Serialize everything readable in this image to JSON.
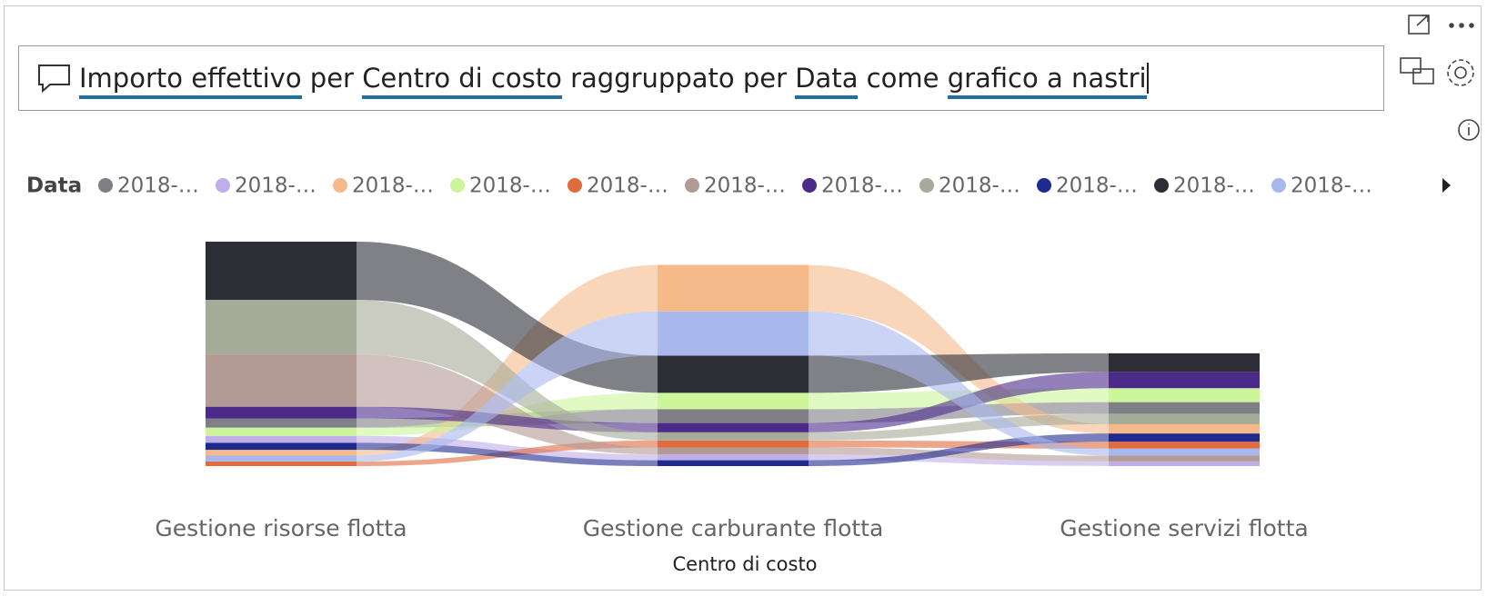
{
  "query_parts": [
    {
      "text": "Importo effettivo",
      "term": true
    },
    {
      "text": " per ",
      "term": false
    },
    {
      "text": "Centro di costo",
      "term": true
    },
    {
      "text": " raggruppato per ",
      "term": false
    },
    {
      "text": "Data",
      "term": true
    },
    {
      "text": " come ",
      "term": false
    },
    {
      "text": "grafico a nastri",
      "term": true
    }
  ],
  "chart_data": {
    "type": "ribbon",
    "legend_title": "Data",
    "x_label": "Centro di costo",
    "categories": [
      "Gestione risorse flotta",
      "Gestione carburante flotta",
      "Gestione servizi flotta"
    ],
    "series": [
      {
        "name": "2018-…",
        "color": "#7f7f86",
        "values": [
          8,
          12,
          10
        ]
      },
      {
        "name": "2018-…",
        "color": "#c0aee8",
        "values": [
          6,
          5,
          4
        ]
      },
      {
        "name": "2018-…",
        "color": "#f5b98a",
        "values": [
          5,
          40,
          8
        ]
      },
      {
        "name": "2018-…",
        "color": "#cdf59a",
        "values": [
          7,
          14,
          12
        ]
      },
      {
        "name": "2018-…",
        "color": "#e06b3e",
        "values": [
          4,
          6,
          6
        ]
      },
      {
        "name": "2018-…",
        "color": "#b49a94",
        "values": [
          45,
          6,
          5
        ]
      },
      {
        "name": "2018-…",
        "color": "#4b2a8a",
        "values": [
          10,
          8,
          14
        ]
      },
      {
        "name": "2018-…",
        "color": "#a6aa98",
        "values": [
          47,
          7,
          9
        ]
      },
      {
        "name": "2018-…",
        "color": "#1f2a8f",
        "values": [
          6,
          5,
          7
        ]
      },
      {
        "name": "2018-…",
        "color": "#2c2d35",
        "values": [
          50,
          32,
          16
        ]
      },
      {
        "name": "2018-…",
        "color": "#a8b8ec",
        "values": [
          5,
          38,
          6
        ]
      }
    ]
  }
}
